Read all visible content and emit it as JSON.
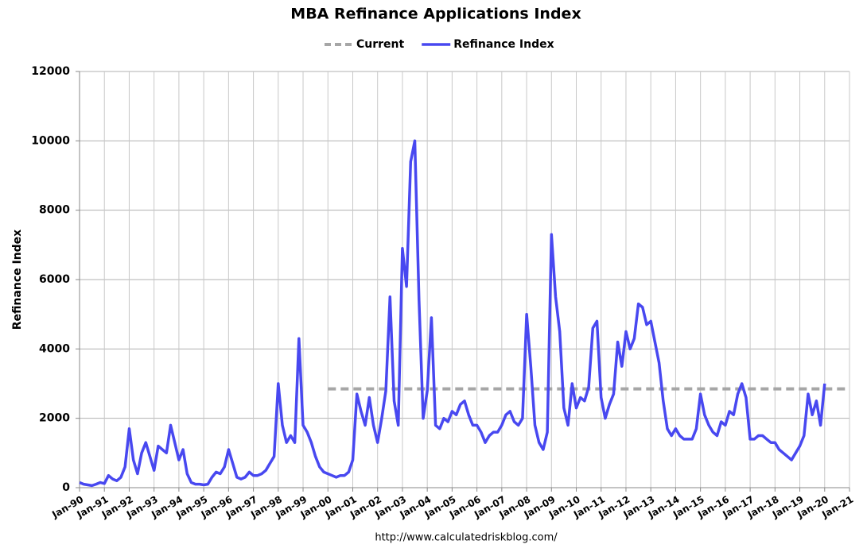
{
  "chart_data": {
    "type": "line",
    "title": "MBA Refinance Applications Index",
    "y_label": "Refinance Index",
    "source": "http://www.calculatedriskblog.com/",
    "legend": "top",
    "grid": true,
    "xlim": [
      "Jan-90",
      "Jan-21"
    ],
    "xticks": [
      "Jan-90",
      "Jan-91",
      "Jan-92",
      "Jan-93",
      "Jan-94",
      "Jan-95",
      "Jan-96",
      "Jan-97",
      "Jan-98",
      "Jan-99",
      "Jan-00",
      "Jan-01",
      "Jan-02",
      "Jan-03",
      "Jan-04",
      "Jan-05",
      "Jan-06",
      "Jan-07",
      "Jan-08",
      "Jan-09",
      "Jan-10",
      "Jan-11",
      "Jan-12",
      "Jan-13",
      "Jan-14",
      "Jan-15",
      "Jan-16",
      "Jan-17",
      "Jan-18",
      "Jan-19",
      "Jan-20",
      "Jan-21"
    ],
    "ylim": [
      0,
      12000
    ],
    "yticks": [
      0,
      2000,
      4000,
      6000,
      8000,
      10000,
      12000
    ],
    "series": [
      {
        "name": "Current",
        "color": "#a6a6a6",
        "dashed": true,
        "x": [
          "Jan-00",
          "Jan-21"
        ],
        "values": [
          2850,
          2850
        ]
      },
      {
        "name": "Refinance Index",
        "color": "#4848f0",
        "dashed": false,
        "x": [
          "Jan-90",
          "Mar-90",
          "May-90",
          "Jul-90",
          "Sep-90",
          "Nov-90",
          "Jan-91",
          "Mar-91",
          "May-91",
          "Jul-91",
          "Sep-91",
          "Nov-91",
          "Jan-92",
          "Mar-92",
          "May-92",
          "Jul-92",
          "Sep-92",
          "Nov-92",
          "Jan-93",
          "Mar-93",
          "May-93",
          "Jul-93",
          "Sep-93",
          "Nov-93",
          "Jan-94",
          "Mar-94",
          "May-94",
          "Jul-94",
          "Sep-94",
          "Nov-94",
          "Jan-95",
          "Mar-95",
          "May-95",
          "Jul-95",
          "Sep-95",
          "Nov-95",
          "Jan-96",
          "Mar-96",
          "May-96",
          "Jul-96",
          "Sep-96",
          "Nov-96",
          "Jan-97",
          "Mar-97",
          "May-97",
          "Jul-97",
          "Sep-97",
          "Nov-97",
          "Jan-98",
          "Mar-98",
          "May-98",
          "Jul-98",
          "Sep-98",
          "Nov-98",
          "Jan-99",
          "Mar-99",
          "May-99",
          "Jul-99",
          "Sep-99",
          "Nov-99",
          "Jan-00",
          "Mar-00",
          "May-00",
          "Jul-00",
          "Sep-00",
          "Nov-00",
          "Jan-01",
          "Mar-01",
          "May-01",
          "Jul-01",
          "Sep-01",
          "Nov-01",
          "Jan-02",
          "Mar-02",
          "May-02",
          "Jul-02",
          "Sep-02",
          "Nov-02",
          "Jan-03",
          "Mar-03",
          "May-03",
          "Jul-03",
          "Sep-03",
          "Nov-03",
          "Jan-04",
          "Mar-04",
          "May-04",
          "Jul-04",
          "Sep-04",
          "Nov-04",
          "Jan-05",
          "Mar-05",
          "May-05",
          "Jul-05",
          "Sep-05",
          "Nov-05",
          "Jan-06",
          "Mar-06",
          "May-06",
          "Jul-06",
          "Sep-06",
          "Nov-06",
          "Jan-07",
          "Mar-07",
          "May-07",
          "Jul-07",
          "Sep-07",
          "Nov-07",
          "Jan-08",
          "Mar-08",
          "May-08",
          "Jul-08",
          "Sep-08",
          "Nov-08",
          "Jan-09",
          "Mar-09",
          "May-09",
          "Jul-09",
          "Sep-09",
          "Nov-09",
          "Jan-10",
          "Mar-10",
          "May-10",
          "Jul-10",
          "Sep-10",
          "Nov-10",
          "Jan-11",
          "Mar-11",
          "May-11",
          "Jul-11",
          "Sep-11",
          "Nov-11",
          "Jan-12",
          "Mar-12",
          "May-12",
          "Jul-12",
          "Sep-12",
          "Nov-12",
          "Jan-13",
          "Mar-13",
          "May-13",
          "Jul-13",
          "Sep-13",
          "Nov-13",
          "Jan-14",
          "Mar-14",
          "May-14",
          "Jul-14",
          "Sep-14",
          "Nov-14",
          "Jan-15",
          "Mar-15",
          "May-15",
          "Jul-15",
          "Sep-15",
          "Nov-15",
          "Jan-16",
          "Mar-16",
          "May-16",
          "Jul-16",
          "Sep-16",
          "Nov-16",
          "Jan-17",
          "Mar-17",
          "May-17",
          "Jul-17",
          "Sep-17",
          "Nov-17",
          "Jan-18",
          "Mar-18",
          "May-18",
          "Jul-18",
          "Sep-18",
          "Nov-18",
          "Jan-19",
          "Mar-19",
          "May-19",
          "Jul-19",
          "Sep-19",
          "Nov-19",
          "Jan-20"
        ],
        "values": [
          150,
          100,
          80,
          60,
          100,
          150,
          120,
          350,
          250,
          200,
          300,
          600,
          1700,
          800,
          400,
          1000,
          1300,
          900,
          500,
          1200,
          1100,
          1000,
          1800,
          1300,
          800,
          1100,
          400,
          150,
          100,
          100,
          80,
          100,
          300,
          450,
          400,
          600,
          1100,
          700,
          300,
          250,
          300,
          450,
          350,
          350,
          400,
          500,
          700,
          900,
          3000,
          1800,
          1300,
          1500,
          1300,
          4300,
          1800,
          1600,
          1300,
          900,
          600,
          450,
          400,
          350,
          300,
          350,
          350,
          450,
          800,
          2700,
          2200,
          1800,
          2600,
          1800,
          1300,
          2000,
          2800,
          5500,
          2500,
          1800,
          6900,
          5800,
          9400,
          10000,
          5400,
          2000,
          2800,
          4900,
          1800,
          1700,
          2000,
          1900,
          2200,
          2100,
          2400,
          2500,
          2100,
          1800,
          1800,
          1600,
          1300,
          1500,
          1600,
          1600,
          1800,
          2100,
          2200,
          1900,
          1800,
          2000,
          5000,
          3500,
          1800,
          1300,
          1100,
          1600,
          7300,
          5500,
          4500,
          2300,
          1800,
          3000,
          2300,
          2600,
          2500,
          2900,
          4600,
          4800,
          2600,
          2000,
          2400,
          2700,
          4200,
          3500,
          4500,
          4000,
          4300,
          5300,
          5200,
          4700,
          4800,
          4200,
          3600,
          2500,
          1700,
          1500,
          1700,
          1500,
          1400,
          1400,
          1400,
          1700,
          2700,
          2100,
          1800,
          1600,
          1500,
          1900,
          1800,
          2200,
          2100,
          2700,
          3000,
          2600,
          1400,
          1400,
          1500,
          1500,
          1400,
          1300,
          1300,
          1100,
          1000,
          900,
          800,
          1000,
          1200,
          1500,
          2700,
          2100,
          2500,
          1800,
          3000
        ]
      }
    ]
  }
}
